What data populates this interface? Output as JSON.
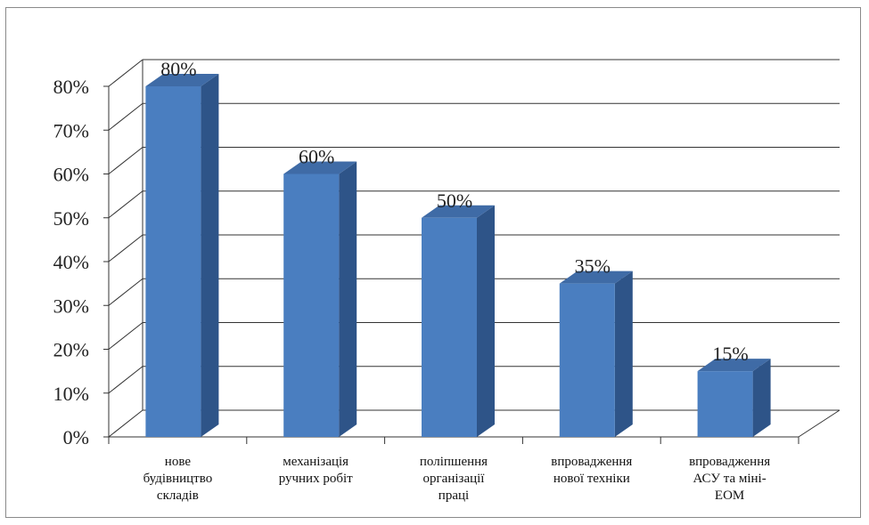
{
  "chart_data": {
    "type": "bar",
    "categories": [
      [
        "нове",
        "будівництво",
        "складів"
      ],
      [
        "механізація",
        "ручних робіт"
      ],
      [
        "поліпшення",
        "організації",
        "праці"
      ],
      [
        "впровадження",
        "нової техніки"
      ],
      [
        "впровадження",
        "АСУ та міні-",
        "ЕОМ"
      ]
    ],
    "values": [
      80,
      60,
      50,
      35,
      15
    ],
    "data_labels": [
      "80%",
      "60%",
      "50%",
      "35%",
      "15%"
    ],
    "y_ticks": [
      "0%",
      "10%",
      "20%",
      "30%",
      "40%",
      "50%",
      "60%",
      "70%",
      "80%"
    ],
    "ylim": [
      0,
      80
    ],
    "grid": true,
    "colors": {
      "bar_front": "#4a7ec0",
      "bar_side": "#2e5488",
      "bar_top": "#3f6ba6",
      "grid": "#333333"
    }
  }
}
